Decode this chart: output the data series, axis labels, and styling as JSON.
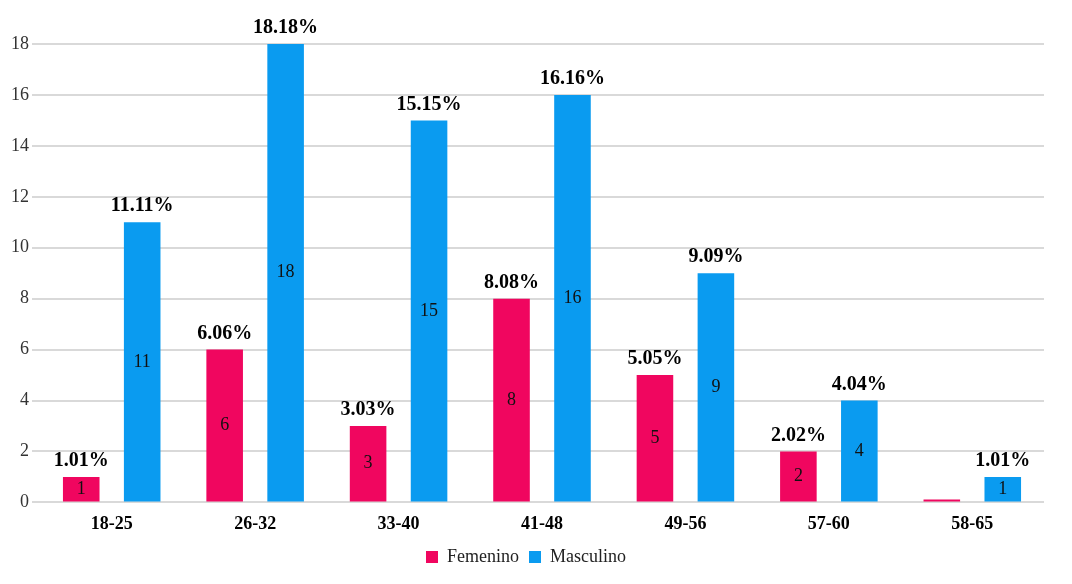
{
  "chart_data": {
    "type": "bar",
    "categories": [
      "18-25",
      "26-32",
      "33-40",
      "41-48",
      "49-56",
      "57-60",
      "58-65"
    ],
    "series": [
      {
        "name": "Femenino",
        "color": "#f0065f",
        "values": [
          1,
          6,
          3,
          8,
          5,
          2,
          0
        ],
        "value_labels": [
          "1",
          "6",
          "3",
          "8",
          "5",
          "2",
          null
        ]
      },
      {
        "name": "Masculino",
        "color": "#0a9bf0",
        "values": [
          11,
          18,
          15,
          16,
          9,
          4,
          1
        ],
        "value_labels": [
          "11",
          "18",
          "15",
          "16",
          "9",
          "4",
          "1"
        ]
      }
    ],
    "annotations": [
      "1.01%",
      "11.11%",
      "6.06%",
      "18.18%",
      "3.03%",
      "15.15%",
      "8.08%",
      "16.16%",
      "5.05%",
      "9.09%",
      "2.02%",
      "4.04%",
      "1.01%"
    ],
    "ylim": [
      0,
      18
    ],
    "yticks": [
      0,
      2,
      4,
      6,
      8,
      10,
      12,
      14,
      16,
      18
    ],
    "grid": "y",
    "legend": "bottom"
  }
}
